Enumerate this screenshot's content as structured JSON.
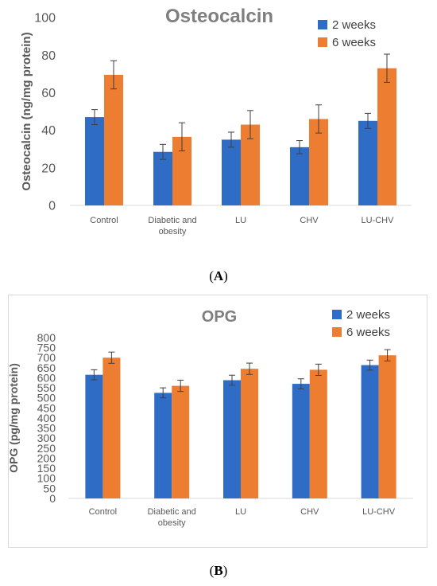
{
  "chart_data": [
    {
      "id": "A",
      "type": "bar",
      "title": "Osteocalcin",
      "ylabel": "Osteocalcin (ng/mg protein)",
      "xlabel": "",
      "ylim": [
        0,
        100
      ],
      "yticks": [
        0,
        20,
        40,
        60,
        80,
        100
      ],
      "categories": [
        "Control",
        "Diabetic and obesity",
        "LU",
        "CHV",
        "LU-CHV"
      ],
      "series": [
        {
          "name": "2 weeks",
          "color": "#2e6cc6",
          "values": [
            47,
            28.5,
            35,
            31,
            45
          ],
          "errors": [
            4,
            4,
            4,
            3.5,
            4
          ]
        },
        {
          "name": "6 weeks",
          "color": "#ed7d31",
          "values": [
            69.5,
            36.5,
            43,
            46,
            73
          ],
          "errors": [
            7.5,
            7.5,
            7.5,
            7.5,
            7.5
          ]
        }
      ],
      "legend_position": "top-right",
      "grid": false
    },
    {
      "id": "B",
      "type": "bar",
      "title": "OPG",
      "ylabel": "OPG (pg/mg protein)",
      "xlabel": "",
      "ylim": [
        0,
        800
      ],
      "yticks": [
        0,
        50,
        100,
        150,
        200,
        250,
        300,
        350,
        400,
        450,
        500,
        550,
        600,
        650,
        700,
        750,
        800
      ],
      "categories": [
        "Control",
        "Diabetic and obesity",
        "LU",
        "CHV",
        "LU-CHV"
      ],
      "series": [
        {
          "name": "2 weeks",
          "color": "#2e6cc6",
          "values": [
            615,
            525,
            588,
            570,
            663
          ],
          "errors": [
            25,
            25,
            25,
            25,
            25
          ]
        },
        {
          "name": "6 weeks",
          "color": "#ed7d31",
          "values": [
            700,
            560,
            645,
            640,
            712
          ],
          "errors": [
            28,
            28,
            28,
            28,
            28
          ]
        }
      ],
      "legend_position": "top-right",
      "grid": false
    }
  ],
  "labels": {
    "a": "A",
    "b": "B"
  }
}
